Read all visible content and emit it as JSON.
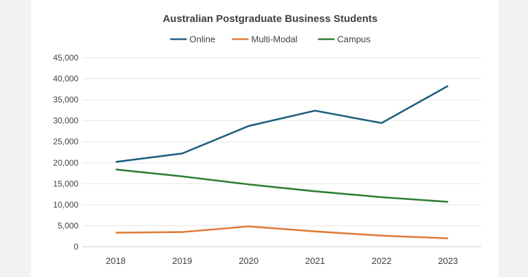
{
  "chart_data": {
    "type": "line",
    "title": "Australian Postgraduate Business Students",
    "categories": [
      "2018",
      "2019",
      "2020",
      "2021",
      "2022",
      "2023"
    ],
    "ylim": [
      0,
      45000
    ],
    "yticks": [
      0,
      5000,
      10000,
      15000,
      20000,
      25000,
      30000,
      35000,
      40000,
      45000
    ],
    "ytick_labels": [
      "0",
      "5,000",
      "10,000",
      "15,000",
      "20,000",
      "25,000",
      "30,000",
      "35,000",
      "40,000",
      "45,000"
    ],
    "grid": true,
    "legend_position": "top",
    "series": [
      {
        "name": "Online",
        "color": "#1f5f7f",
        "values": [
          20200,
          22200,
          28750,
          32400,
          29450,
          38300
        ]
      },
      {
        "name": "Multi-Modal",
        "color": "#e07b39",
        "values": [
          3350,
          3500,
          4850,
          3650,
          2650,
          2000
        ]
      },
      {
        "name": "Campus",
        "color": "#2e7d32",
        "values": [
          18400,
          16750,
          14850,
          13200,
          11800,
          10700
        ]
      }
    ]
  }
}
